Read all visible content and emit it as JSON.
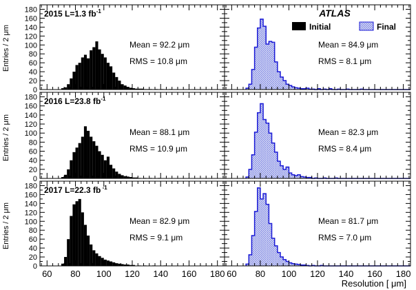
{
  "chart_data": {
    "type": "histogram",
    "experiment": "ATLAS",
    "xlabel": "Resolution [ μm]",
    "ylabel": "Entries / 2 μm",
    "xlim": [
      55,
      185
    ],
    "ylim": [
      0,
      190
    ],
    "xticks": [
      60,
      80,
      100,
      120,
      140,
      160,
      180
    ],
    "yticks": [
      0,
      20,
      40,
      60,
      80,
      100,
      120,
      140,
      160,
      180
    ],
    "bin_width": 2,
    "legend": {
      "placement": "top-right",
      "entries": [
        {
          "name": "Initial",
          "fill": "#000000"
        },
        {
          "name": "Final",
          "fill": "#c8cdf0",
          "stroke": "#1a1ad6"
        }
      ]
    },
    "rows": [
      {
        "label_year": "2015",
        "label_lumi": "L=1.3 fb",
        "label_sup": "-1",
        "initial": {
          "mean_text": "Mean = 92.2  μm",
          "rms_text": "RMS  = 10.8  μm",
          "bins": [
            {
              "x": 70,
              "y": 3
            },
            {
              "x": 72,
              "y": 5
            },
            {
              "x": 74,
              "y": 12
            },
            {
              "x": 76,
              "y": 25
            },
            {
              "x": 78,
              "y": 40
            },
            {
              "x": 80,
              "y": 55
            },
            {
              "x": 82,
              "y": 60
            },
            {
              "x": 84,
              "y": 72
            },
            {
              "x": 86,
              "y": 78
            },
            {
              "x": 88,
              "y": 70
            },
            {
              "x": 90,
              "y": 88
            },
            {
              "x": 92,
              "y": 95
            },
            {
              "x": 94,
              "y": 108
            },
            {
              "x": 96,
              "y": 90
            },
            {
              "x": 98,
              "y": 80
            },
            {
              "x": 100,
              "y": 72
            },
            {
              "x": 102,
              "y": 60
            },
            {
              "x": 104,
              "y": 52
            },
            {
              "x": 106,
              "y": 38
            },
            {
              "x": 108,
              "y": 28
            },
            {
              "x": 110,
              "y": 20
            },
            {
              "x": 112,
              "y": 12
            },
            {
              "x": 114,
              "y": 9
            },
            {
              "x": 116,
              "y": 6
            },
            {
              "x": 118,
              "y": 4
            },
            {
              "x": 120,
              "y": 3
            },
            {
              "x": 122,
              "y": 2
            },
            {
              "x": 124,
              "y": 2
            },
            {
              "x": 126,
              "y": 2
            },
            {
              "x": 128,
              "y": 1
            },
            {
              "x": 130,
              "y": 1
            },
            {
              "x": 132,
              "y": 1
            },
            {
              "x": 136,
              "y": 1
            },
            {
              "x": 140,
              "y": 1
            },
            {
              "x": 146,
              "y": 1
            }
          ]
        },
        "final": {
          "mean_text": "Mean = 84.9  μm",
          "rms_text": "RMS  =   8.1  μm",
          "bins": [
            {
              "x": 70,
              "y": 3
            },
            {
              "x": 72,
              "y": 12
            },
            {
              "x": 74,
              "y": 45
            },
            {
              "x": 76,
              "y": 95
            },
            {
              "x": 78,
              "y": 138
            },
            {
              "x": 80,
              "y": 158
            },
            {
              "x": 82,
              "y": 142
            },
            {
              "x": 84,
              "y": 102
            },
            {
              "x": 86,
              "y": 108
            },
            {
              "x": 88,
              "y": 106
            },
            {
              "x": 90,
              "y": 62
            },
            {
              "x": 92,
              "y": 40
            },
            {
              "x": 94,
              "y": 28
            },
            {
              "x": 96,
              "y": 20
            },
            {
              "x": 98,
              "y": 12
            },
            {
              "x": 100,
              "y": 9
            },
            {
              "x": 102,
              "y": 6
            },
            {
              "x": 104,
              "y": 4
            },
            {
              "x": 106,
              "y": 3
            },
            {
              "x": 108,
              "y": 2
            },
            {
              "x": 110,
              "y": 2
            },
            {
              "x": 112,
              "y": 3
            },
            {
              "x": 114,
              "y": 1
            },
            {
              "x": 116,
              "y": 1
            },
            {
              "x": 120,
              "y": 2
            },
            {
              "x": 124,
              "y": 1
            },
            {
              "x": 128,
              "y": 2
            },
            {
              "x": 134,
              "y": 1
            },
            {
              "x": 140,
              "y": 1
            },
            {
              "x": 150,
              "y": 1
            }
          ]
        }
      },
      {
        "label_year": "2016",
        "label_lumi": "L=23.8 fb",
        "label_sup": "-1",
        "initial": {
          "mean_text": "Mean = 88.1  μm",
          "rms_text": "RMS  = 10.9  μm",
          "bins": [
            {
              "x": 70,
              "y": 3
            },
            {
              "x": 72,
              "y": 8
            },
            {
              "x": 74,
              "y": 20
            },
            {
              "x": 76,
              "y": 40
            },
            {
              "x": 78,
              "y": 58
            },
            {
              "x": 80,
              "y": 68
            },
            {
              "x": 82,
              "y": 78
            },
            {
              "x": 84,
              "y": 92
            },
            {
              "x": 86,
              "y": 115
            },
            {
              "x": 88,
              "y": 105
            },
            {
              "x": 90,
              "y": 92
            },
            {
              "x": 92,
              "y": 82
            },
            {
              "x": 94,
              "y": 72
            },
            {
              "x": 96,
              "y": 60
            },
            {
              "x": 98,
              "y": 52
            },
            {
              "x": 100,
              "y": 40
            },
            {
              "x": 102,
              "y": 48
            },
            {
              "x": 104,
              "y": 30
            },
            {
              "x": 106,
              "y": 22
            },
            {
              "x": 108,
              "y": 15
            },
            {
              "x": 110,
              "y": 10
            },
            {
              "x": 112,
              "y": 7
            },
            {
              "x": 114,
              "y": 5
            },
            {
              "x": 116,
              "y": 4
            },
            {
              "x": 118,
              "y": 3
            },
            {
              "x": 120,
              "y": 2
            },
            {
              "x": 122,
              "y": 2
            },
            {
              "x": 124,
              "y": 1
            },
            {
              "x": 128,
              "y": 1
            },
            {
              "x": 132,
              "y": 1
            },
            {
              "x": 138,
              "y": 1
            }
          ]
        },
        "final": {
          "mean_text": "Mean = 82.3  μm",
          "rms_text": "RMS  =   8.4  μm",
          "bins": [
            {
              "x": 70,
              "y": 3
            },
            {
              "x": 72,
              "y": 20
            },
            {
              "x": 74,
              "y": 52
            },
            {
              "x": 76,
              "y": 102
            },
            {
              "x": 78,
              "y": 145
            },
            {
              "x": 80,
              "y": 165
            },
            {
              "x": 82,
              "y": 130
            },
            {
              "x": 84,
              "y": 122
            },
            {
              "x": 86,
              "y": 100
            },
            {
              "x": 88,
              "y": 78
            },
            {
              "x": 90,
              "y": 58
            },
            {
              "x": 92,
              "y": 38
            },
            {
              "x": 94,
              "y": 28
            },
            {
              "x": 96,
              "y": 20
            },
            {
              "x": 98,
              "y": 25
            },
            {
              "x": 100,
              "y": 12
            },
            {
              "x": 102,
              "y": 8
            },
            {
              "x": 104,
              "y": 6
            },
            {
              "x": 106,
              "y": 8
            },
            {
              "x": 108,
              "y": 4
            },
            {
              "x": 110,
              "y": 3
            },
            {
              "x": 112,
              "y": 2
            },
            {
              "x": 114,
              "y": 2
            },
            {
              "x": 118,
              "y": 1
            },
            {
              "x": 124,
              "y": 1
            },
            {
              "x": 132,
              "y": 1
            }
          ]
        }
      },
      {
        "label_year": "2017",
        "label_lumi": "L=22.3 fb",
        "label_sup": " -1",
        "initial": {
          "mean_text": "Mean = 82.9  μm",
          "rms_text": "RMS  =   9.1  μm",
          "bins": [
            {
              "x": 70,
              "y": 5
            },
            {
              "x": 72,
              "y": 20
            },
            {
              "x": 74,
              "y": 60
            },
            {
              "x": 76,
              "y": 112
            },
            {
              "x": 78,
              "y": 138
            },
            {
              "x": 80,
              "y": 145
            },
            {
              "x": 82,
              "y": 150
            },
            {
              "x": 84,
              "y": 120
            },
            {
              "x": 86,
              "y": 92
            },
            {
              "x": 88,
              "y": 68
            },
            {
              "x": 90,
              "y": 48
            },
            {
              "x": 92,
              "y": 35
            },
            {
              "x": 94,
              "y": 28
            },
            {
              "x": 96,
              "y": 22
            },
            {
              "x": 98,
              "y": 18
            },
            {
              "x": 100,
              "y": 14
            },
            {
              "x": 102,
              "y": 12
            },
            {
              "x": 104,
              "y": 10
            },
            {
              "x": 106,
              "y": 8
            },
            {
              "x": 108,
              "y": 6
            },
            {
              "x": 110,
              "y": 5
            },
            {
              "x": 112,
              "y": 4
            },
            {
              "x": 114,
              "y": 3
            },
            {
              "x": 116,
              "y": 3
            },
            {
              "x": 118,
              "y": 2
            },
            {
              "x": 120,
              "y": 2
            },
            {
              "x": 124,
              "y": 1
            },
            {
              "x": 128,
              "y": 1
            },
            {
              "x": 134,
              "y": 1
            },
            {
              "x": 142,
              "y": 1
            }
          ]
        },
        "final": {
          "mean_text": "Mean = 81.7  μm",
          "rms_text": "RMS  =   7.0  μm",
          "bins": [
            {
              "x": 70,
              "y": 4
            },
            {
              "x": 72,
              "y": 25
            },
            {
              "x": 74,
              "y": 68
            },
            {
              "x": 76,
              "y": 122
            },
            {
              "x": 78,
              "y": 175
            },
            {
              "x": 80,
              "y": 150
            },
            {
              "x": 82,
              "y": 162
            },
            {
              "x": 84,
              "y": 138
            },
            {
              "x": 86,
              "y": 95
            },
            {
              "x": 88,
              "y": 62
            },
            {
              "x": 90,
              "y": 45
            },
            {
              "x": 92,
              "y": 30
            },
            {
              "x": 94,
              "y": 20
            },
            {
              "x": 96,
              "y": 14
            },
            {
              "x": 98,
              "y": 10
            },
            {
              "x": 100,
              "y": 7
            },
            {
              "x": 102,
              "y": 5
            },
            {
              "x": 104,
              "y": 4
            },
            {
              "x": 106,
              "y": 3
            },
            {
              "x": 108,
              "y": 2
            },
            {
              "x": 110,
              "y": 2
            },
            {
              "x": 112,
              "y": 1
            },
            {
              "x": 116,
              "y": 1
            },
            {
              "x": 122,
              "y": 1
            }
          ]
        }
      }
    ]
  }
}
